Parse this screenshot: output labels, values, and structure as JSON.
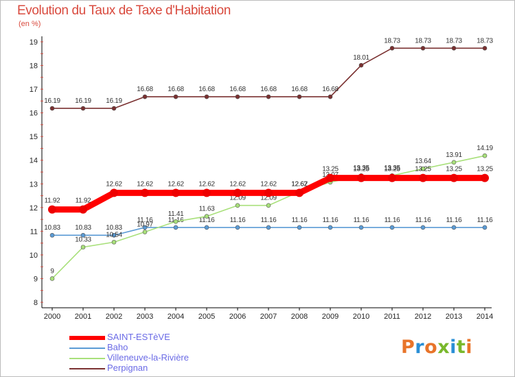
{
  "title": "Evolution du Taux de Taxe d'Habitation",
  "unit": "(en %)",
  "logo": "Proxiti",
  "colors": {
    "background": "#ffffff",
    "title": "#d94a3e",
    "axis": "#000000",
    "legend_text": "#6a6ae6",
    "logo": [
      "#e8742a",
      "#2a8fd6",
      "#e8742a",
      "#79b82c",
      "#2a8fd6",
      "#79b82c",
      "#e8742a"
    ]
  },
  "chart_data": {
    "type": "line",
    "title": "Evolution du Taux de Taxe d'Habitation",
    "ylabel": "(en %)",
    "x": [
      "2000",
      "2001",
      "2002",
      "2003",
      "2004",
      "2005",
      "2006",
      "2007",
      "2008",
      "2009",
      "2010",
      "2011",
      "2012",
      "2013",
      "2014"
    ],
    "ylim": [
      8,
      19
    ],
    "yticks": [
      "8",
      "9",
      "10",
      "11",
      "12",
      "13",
      "14",
      "15",
      "16",
      "17",
      "18",
      "19"
    ],
    "grid": false,
    "legend": "bottom-left",
    "series": [
      {
        "name": "Perpignan",
        "color": "#7a3030",
        "values": [
          16.19,
          16.19,
          16.19,
          16.68,
          16.68,
          16.68,
          16.68,
          16.68,
          16.68,
          16.68,
          18.01,
          18.73,
          18.73,
          18.73,
          18.73
        ],
        "labels": [
          "16.19",
          "16.19",
          "16.19",
          "16.68",
          "16.68",
          "16.68",
          "16.68",
          "16.68",
          "16.68",
          "16.68",
          "18.01",
          "18.73",
          "18.73",
          "18.73",
          "18.73"
        ]
      },
      {
        "name": "Baho",
        "color": "#5b9bd5",
        "values": [
          10.83,
          10.83,
          10.83,
          11.16,
          11.16,
          11.16,
          11.16,
          11.16,
          11.16,
          11.16,
          11.16,
          11.16,
          11.16,
          11.16,
          11.16
        ],
        "labels": [
          "10.83",
          "10.83",
          "10.83",
          "11.16",
          "11.16",
          "11.16",
          "11.16",
          "11.16",
          "11.16",
          "11.16",
          "11.16",
          "11.16",
          "11.16",
          "11.16",
          "11.16"
        ]
      },
      {
        "name": "Villeneuve-la-Rivière",
        "color": "#a8e07a",
        "values": [
          9,
          10.33,
          10.54,
          10.97,
          11.41,
          11.63,
          12.09,
          12.09,
          12.67,
          13.07,
          13.35,
          13.35,
          13.64,
          13.91,
          14.19
        ],
        "labels": [
          "9",
          "10.33",
          "10.54",
          "10.97",
          "11.41",
          "11.63",
          "12.09",
          "12.09",
          "12.67",
          "13.07",
          "13.35",
          "13.35",
          "13.64",
          "13.91",
          "14.19"
        ]
      },
      {
        "name": "SAINT-ESTèVE",
        "color": "#ff0000",
        "values": [
          11.92,
          11.92,
          12.62,
          12.62,
          12.62,
          12.62,
          12.62,
          12.62,
          12.62,
          13.25,
          13.25,
          13.25,
          13.25,
          13.25,
          13.25
        ],
        "labels": [
          "11.92",
          "11.92",
          "12.62",
          "12.62",
          "12.62",
          "12.62",
          "12.62",
          "12.62",
          "12.62",
          "13.25",
          "13.25",
          "13.25",
          "13.25",
          "13.25",
          "13.25"
        ]
      }
    ],
    "legend_order": [
      "SAINT-ESTèVE",
      "Baho",
      "Villeneuve-la-Rivière",
      "Perpignan"
    ]
  }
}
